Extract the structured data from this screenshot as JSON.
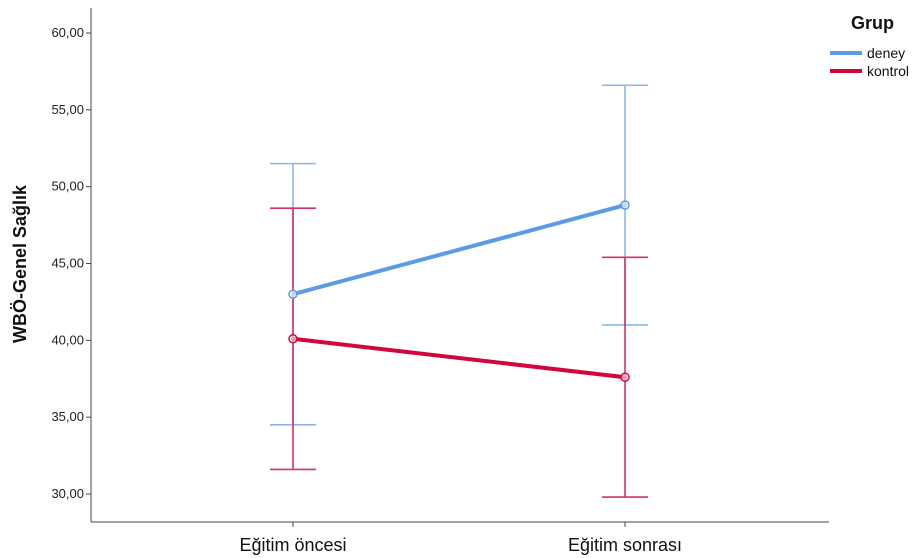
{
  "chart_data": {
    "type": "line",
    "ylabel": "WBÖ-Genel Sağlık",
    "xlabel": "",
    "categories": [
      "Eğitim öncesi",
      "Eğitim sonrası"
    ],
    "ylim": [
      28.5,
      62
    ],
    "yticks": [
      "30,00",
      "35,00",
      "40,00",
      "45,00",
      "50,00",
      "55,00",
      "60,00"
    ],
    "ytick_values": [
      30,
      35,
      40,
      45,
      50,
      55,
      60
    ],
    "grid": false,
    "legend": {
      "title": "Grup",
      "placement": "top-right"
    },
    "series": [
      {
        "name": "deney",
        "color": "#5b9be6",
        "errorbar_color": "#8ab8ec",
        "values": [
          43.0,
          48.8
        ],
        "lower": [
          34.5,
          41.0
        ],
        "upper": [
          51.5,
          56.6
        ]
      },
      {
        "name": "kontrol",
        "color": "#d1063e",
        "errorbar_color": "#d6335f",
        "values": [
          40.1,
          37.6
        ],
        "lower": [
          31.6,
          29.8
        ],
        "upper": [
          48.6,
          45.4
        ]
      }
    ]
  }
}
